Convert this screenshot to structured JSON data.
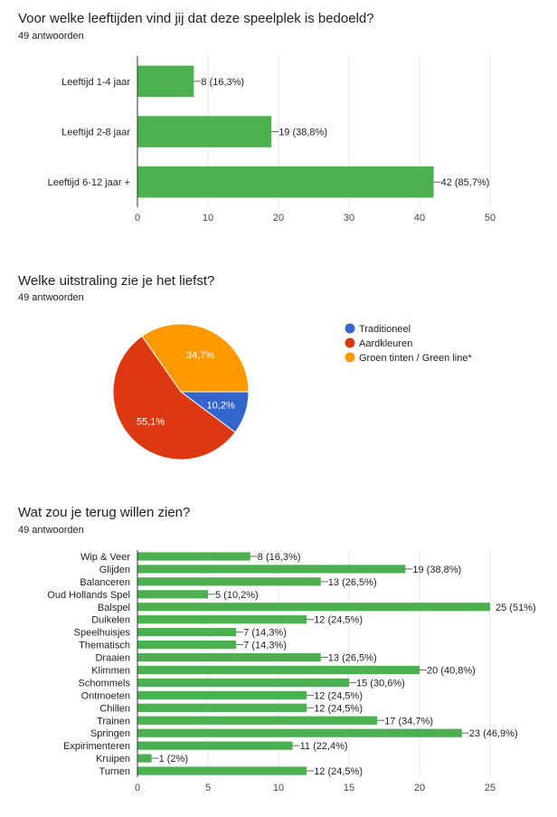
{
  "chart_data": [
    {
      "type": "bar",
      "title": "Voor welke leeftijden vind jij dat deze speelplek is bedoeld?",
      "subtitle": "49 antwoorden",
      "categories": [
        "Leeftijd 1-4 jaar",
        "Leeftijd 2-8 jaar",
        "Leeftijd 6-12 jaar +"
      ],
      "values": [
        8,
        19,
        42
      ],
      "labels": [
        "8 (16,3%)",
        "19 (38,8%)",
        "42 (85,7%)"
      ],
      "xlim": [
        0,
        50
      ],
      "ticks": [
        "0",
        "10",
        "20",
        "30",
        "40",
        "50"
      ],
      "color": "#4caf50"
    },
    {
      "type": "pie",
      "title": "Welke uitstraling zie je het liefst?",
      "subtitle": "49 antwoorden",
      "categories": [
        "Traditioneel",
        "Aardkleuren",
        "Groen tinten / Green line*"
      ],
      "values": [
        10.2,
        55.1,
        34.7
      ],
      "labels": [
        "10,2%",
        "55,1%",
        "34,7%"
      ],
      "colors": [
        "#3366cc",
        "#dc3912",
        "#ff9900"
      ],
      "legend": "right"
    },
    {
      "type": "bar",
      "title": "Wat zou je terug willen zien?",
      "subtitle": "49 antwoorden",
      "categories": [
        "Wip & Veer",
        "Glijden",
        "Balanceren",
        "Oud Hollands Spel",
        "Balspel",
        "Duikelen",
        "Speelhuisjes",
        "Thematisch",
        "Draaien",
        "Klimmen",
        "Schommels",
        "Ontmoeten",
        "Chillen",
        "Trainen",
        "Springen",
        "Expirimenteren",
        "Kruipen",
        "Turnen"
      ],
      "values": [
        8,
        19,
        13,
        5,
        25,
        12,
        7,
        7,
        13,
        20,
        15,
        12,
        12,
        17,
        23,
        11,
        1,
        12
      ],
      "labels": [
        "8 (16,3%)",
        "19 (38,8%)",
        "13 (26,5%)",
        "5 (10,2%)",
        "25 (51%)",
        "12 (24,5%)",
        "7 (14,3%)",
        "7 (14,3%)",
        "13 (26,5%)",
        "20 (40,8%)",
        "15 (30,6%)",
        "12 (24,5%)",
        "12 (24,5%)",
        "17 (34,7%)",
        "23 (46,9%)",
        "11 (22,4%)",
        "1 (2%)",
        "12 (24,5%)"
      ],
      "xlim": [
        0,
        25
      ],
      "ticks": [
        "0",
        "5",
        "10",
        "15",
        "20",
        "25"
      ],
      "color": "#4caf50"
    }
  ]
}
